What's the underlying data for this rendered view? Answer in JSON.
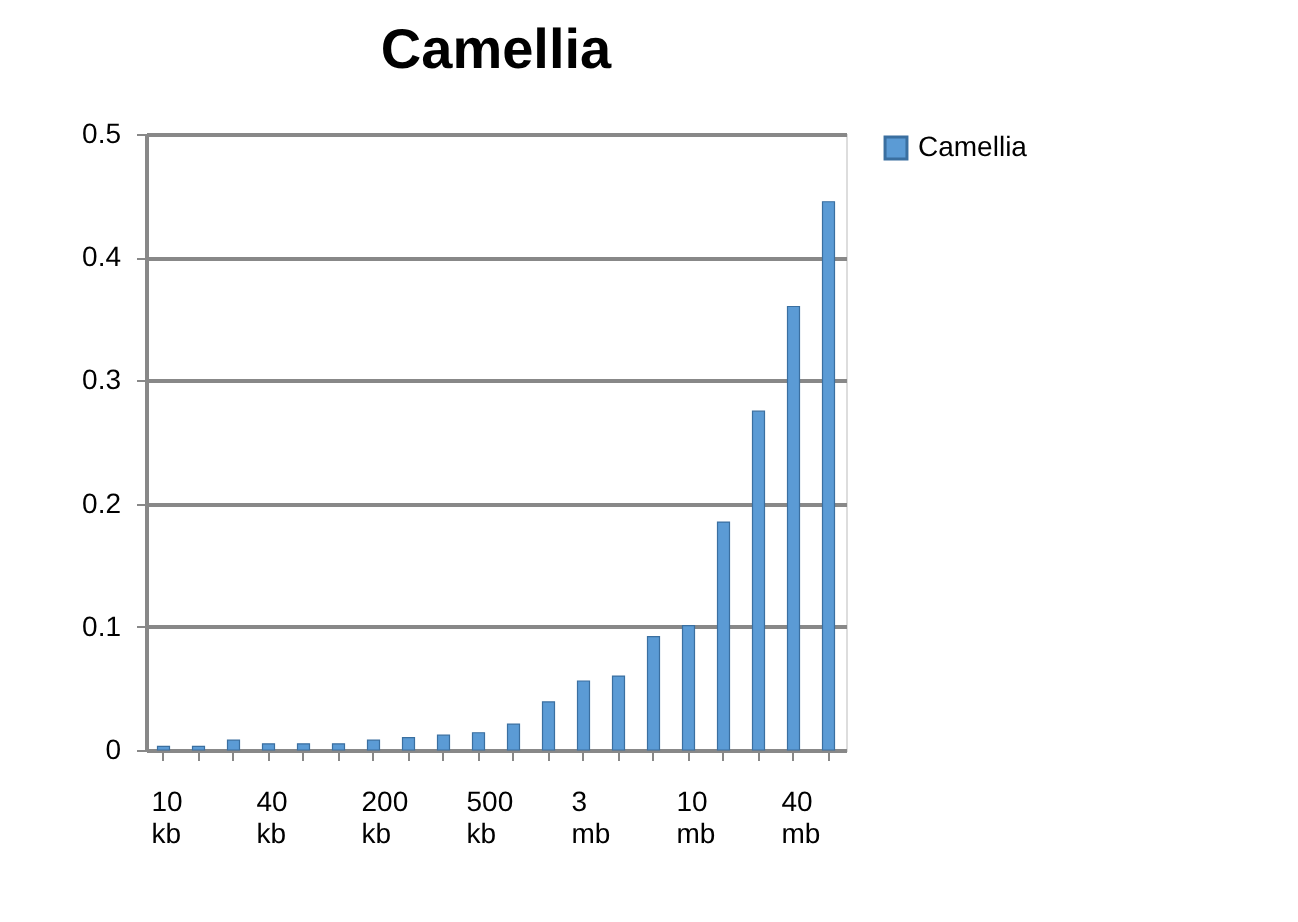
{
  "chart_data": {
    "type": "bar",
    "title": "Camellia",
    "categories": [
      "10 kb",
      null,
      null,
      "40 kb",
      null,
      null,
      "200 kb",
      null,
      null,
      "500 kb",
      null,
      null,
      "3 mb",
      null,
      null,
      "10 mb",
      null,
      null,
      "40 mb",
      null
    ],
    "series": [
      {
        "name": "Camellia",
        "color": "#5b9bd5",
        "values": [
          0.003,
          0.003,
          0.008,
          0.005,
          0.005,
          0.005,
          0.008,
          0.01,
          0.012,
          0.014,
          0.021,
          0.039,
          0.056,
          0.06,
          0.092,
          0.101,
          0.185,
          0.275,
          0.36,
          0.445
        ]
      }
    ],
    "ylim": [
      0,
      0.5
    ],
    "yticks": [
      0,
      0.1,
      0.2,
      0.3,
      0.4,
      0.5
    ],
    "grid": "y",
    "legend": "right"
  }
}
